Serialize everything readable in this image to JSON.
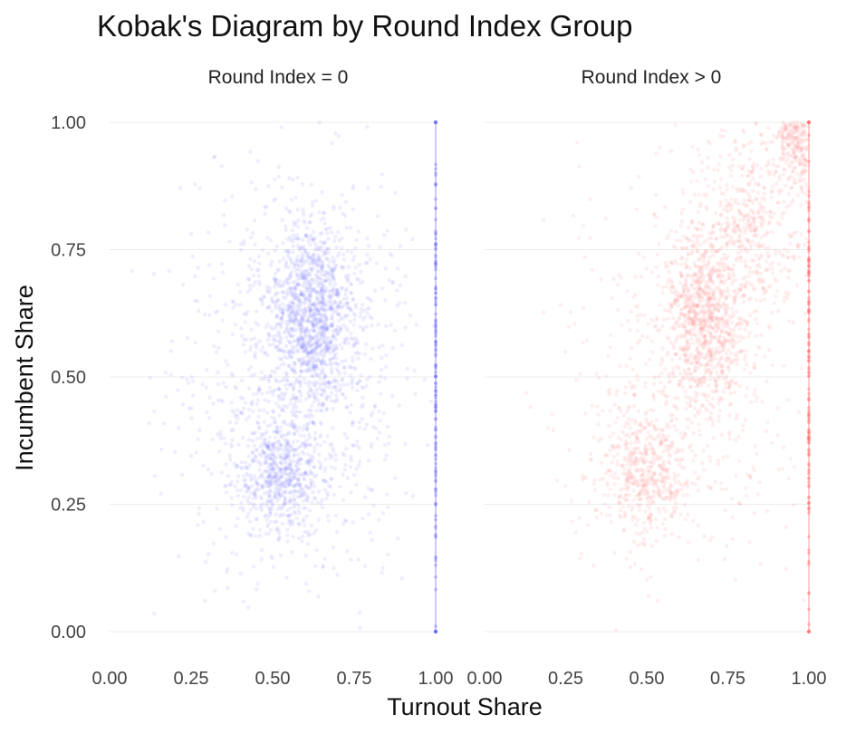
{
  "chart_data": {
    "type": "scatter",
    "title": "Kobak's Diagram by Round Index Group",
    "xlabel": "Turnout Share",
    "ylabel": "Incumbent Share",
    "xlim": [
      0,
      1
    ],
    "ylim": [
      0,
      1
    ],
    "x_ticks": [
      "0.00",
      "0.25",
      "0.50",
      "0.75",
      "1.00"
    ],
    "y_ticks": [
      "0.00",
      "0.25",
      "0.50",
      "0.75",
      "1.00"
    ],
    "grid": false,
    "legend": "none",
    "panels": [
      {
        "label": "Round Index = 0",
        "color": "#6666ff",
        "clusters": [
          {
            "x": 0.62,
            "y": 0.62,
            "sx": 0.07,
            "sy": 0.09,
            "weight": 0.45
          },
          {
            "x": 0.52,
            "y": 0.31,
            "sx": 0.07,
            "sy": 0.06,
            "weight": 0.22
          },
          {
            "x": 0.58,
            "y": 0.5,
            "sx": 0.18,
            "sy": 0.2,
            "weight": 0.33
          }
        ],
        "edge_line_x": 1.0
      },
      {
        "label": "Round Index > 0",
        "color": "#ff6b6b",
        "clusters": [
          {
            "x": 0.68,
            "y": 0.62,
            "sx": 0.06,
            "sy": 0.09,
            "weight": 0.32
          },
          {
            "x": 0.5,
            "y": 0.32,
            "sx": 0.07,
            "sy": 0.06,
            "weight": 0.18
          },
          {
            "x": 0.82,
            "y": 0.8,
            "sx": 0.09,
            "sy": 0.1,
            "weight": 0.2
          },
          {
            "x": 0.96,
            "y": 0.96,
            "sx": 0.03,
            "sy": 0.04,
            "weight": 0.1
          },
          {
            "x": 0.62,
            "y": 0.5,
            "sx": 0.18,
            "sy": 0.2,
            "weight": 0.2
          }
        ],
        "edge_line_x": 1.0
      }
    ]
  }
}
